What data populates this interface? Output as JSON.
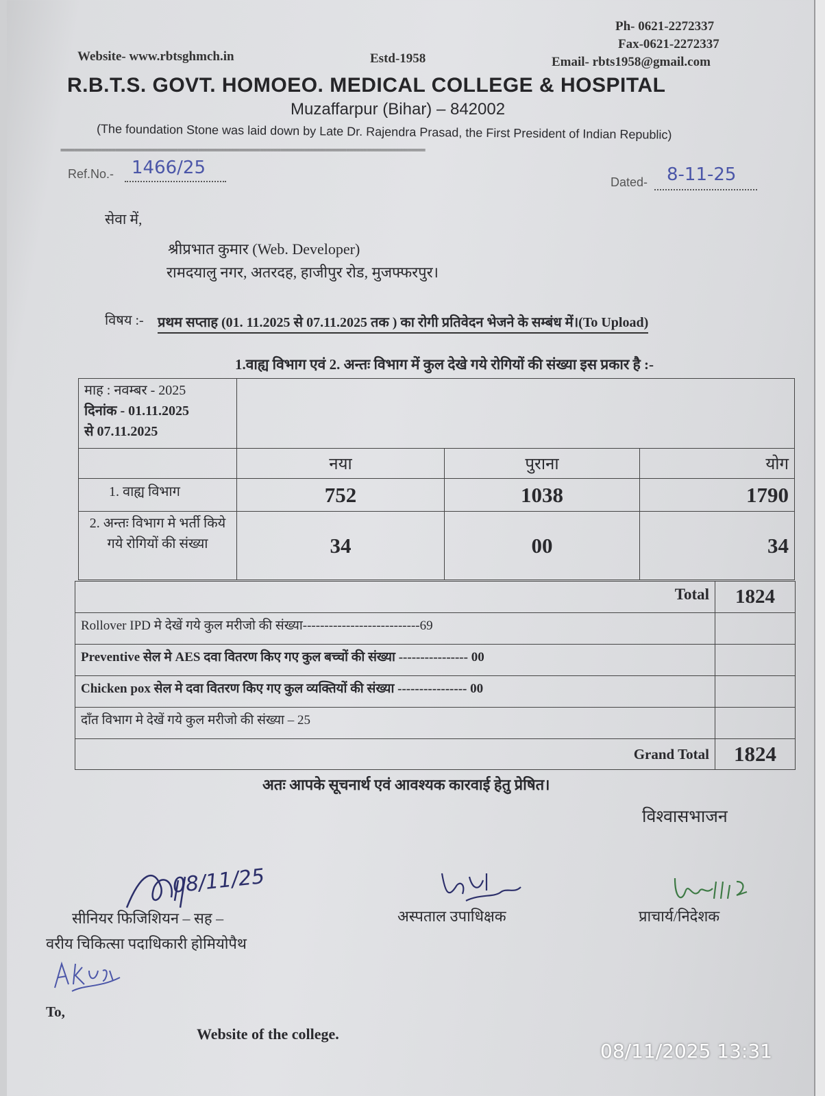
{
  "header": {
    "phone": "Ph- 0621-2272337",
    "fax": "Fax-0621-2272337",
    "website": "Website- www.rbtsghmch.in",
    "established": "Estd-1958",
    "email": "Email- rbts1958@gmail.com",
    "college_name": "R.B.T.S. GOVT. HOMOEO. MEDICAL COLLEGE & HOSPITAL",
    "address": "Muzaffarpur (Bihar) – 842002",
    "foundation_note": "(The foundation Stone was laid down by Late Dr. Rajendra Prasad, the First President of Indian Republic)",
    "separator": "=========================================================================================================="
  },
  "ref": {
    "label": "Ref.No.-",
    "value": "1466/25"
  },
  "dated": {
    "label": "Dated-",
    "value": "8-11-25"
  },
  "recipient": {
    "salutation": "सेवा में,",
    "name": "श्रीप्रभात कुमार (Web. Developer)",
    "address": "रामदयालु नगर, अतरदह,  हाजीपुर रोड,  मुजफ्फरपुर।"
  },
  "subject": {
    "label": "विषय :-",
    "text": "प्रथम  सप्ताह (01. 11.2025 से 07.11.2025 तक ) का  रोगी प्रतिवेदन भेजने के सम्बंध में।(To Upload)"
  },
  "intro": "1.वाह्य विभाग एवं 2. अन्तः विभाग में कुल देखे गये रोगियों की संख्या इस प्रकार है :-",
  "table": {
    "period": [
      "माह :  नवम्बर - 2025",
      "दिनांक  - 01.11.2025",
      "से 07.11.2025"
    ],
    "columns": [
      "नया",
      "पुराना",
      "योग"
    ],
    "rows": [
      {
        "label": "1.  वाह्य विभाग",
        "new": "752",
        "old": "1038",
        "total": "1790"
      },
      {
        "label": "2. अन्तः विभाग मे भर्ती किये गये रोगियों की संख्या",
        "new": "34",
        "old": "00",
        "total": "34"
      }
    ],
    "total_label": "Total",
    "total_value": "1824",
    "notes": [
      "Rollover IPD  मे देखें गये कुल मरीजो की संख्या---------------------------69",
      "Preventive सेल मे AES दवा वितरण किए गए कुल बच्चों की संख्या ---------------- 00",
      "Chicken pox सेल मे दवा वितरण किए गए कुल व्यक्तियों की संख्या ---------------- 00",
      "दाँत विभाग मे देखें गये कुल मरीजो की संख्या – 25"
    ],
    "grand_total_label": "Grand Total",
    "grand_total_value": "1824"
  },
  "closing": "अतः आपके सूचनार्थ एवं आवश्यक कारवाई हेतु प्रेषित।",
  "yours_faithfully": "विश्वासभाजन",
  "signatories": {
    "left_line1": "सीनियर फिजिशियन – सह –",
    "left_line2": "वरीय चिकित्सा पदाधिकारी होमियोपैथ",
    "middle": "अस्पताल उपाधिक्षक",
    "right": "प्राचार्य/निदेशक",
    "left_sign_date": "08/11/25",
    "left_sign_note": "A.Kumar 08/11/25"
  },
  "to": {
    "label": "To,",
    "value": "Website of the college."
  },
  "photo_timestamp": "08/11/2025 13:31",
  "colors": {
    "paper": "#e0e1e4",
    "ink": "#2a2a2e",
    "pen": "#4b56a8",
    "signature_green": "#3e7a45"
  }
}
